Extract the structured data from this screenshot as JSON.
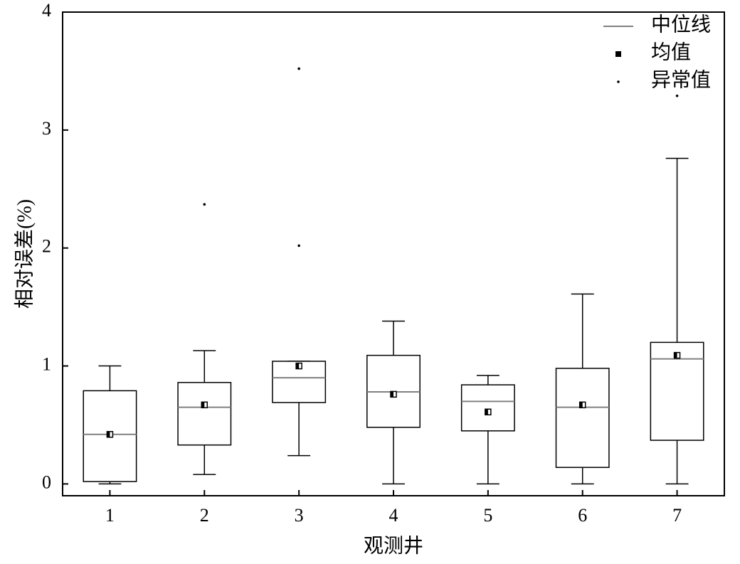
{
  "chart_data": {
    "type": "box",
    "x_label": "观测井",
    "y_label": "相对误差(%)",
    "categories": [
      "1",
      "2",
      "3",
      "4",
      "5",
      "6",
      "7"
    ],
    "boxes": [
      {
        "min": 0,
        "q1": 0.02,
        "median": 0.42,
        "q3": 0.79,
        "max": 1.0,
        "mean": 0.42,
        "outliers": []
      },
      {
        "min": 0.08,
        "q1": 0.33,
        "median": 0.65,
        "q3": 0.86,
        "max": 1.13,
        "mean": 0.67,
        "outliers": [
          2.37
        ]
      },
      {
        "min": 0.24,
        "q1": 0.69,
        "median": 0.9,
        "q3": 1.04,
        "max": 1.04,
        "mean": 1.0,
        "outliers": [
          3.52,
          2.02
        ]
      },
      {
        "min": 0,
        "q1": 0.48,
        "median": 0.78,
        "q3": 1.09,
        "max": 1.38,
        "mean": 0.76,
        "outliers": []
      },
      {
        "min": 0,
        "q1": 0.45,
        "median": 0.7,
        "q3": 0.84,
        "max": 0.92,
        "mean": 0.61,
        "outliers": []
      },
      {
        "min": 0,
        "q1": 0.14,
        "median": 0.65,
        "q3": 0.98,
        "max": 1.61,
        "mean": 0.67,
        "outliers": []
      },
      {
        "min": 0,
        "q1": 0.37,
        "median": 1.06,
        "q3": 1.2,
        "max": 2.76,
        "mean": 1.09,
        "outliers": [
          3.29
        ]
      }
    ],
    "box_color": "#000000",
    "median_color": "#808080",
    "legend": {
      "median": "中位线",
      "mean": "均值",
      "outlier": "异常值"
    },
    "legend_position": "upper right",
    "ylim": [
      -0.1,
      4
    ],
    "yticks": [
      0,
      1,
      2,
      3,
      4
    ]
  }
}
